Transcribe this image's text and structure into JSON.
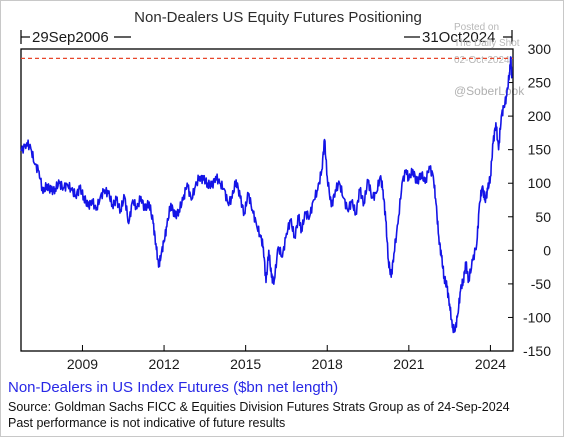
{
  "chart_data": {
    "type": "line",
    "title": "Non-Dealers US Equity Futures Positioning",
    "range_start_label": "29Sep2006",
    "range_end_label": "31Oct2024",
    "xlim": [
      2006.74,
      2024.83
    ],
    "ylim": [
      -150,
      300
    ],
    "x_ticks": [
      2009,
      2012,
      2015,
      2018,
      2021,
      2024
    ],
    "x_tick_labels": [
      "2009",
      "2012",
      "2015",
      "2018",
      "2021",
      "2024"
    ],
    "y_ticks": [
      300,
      250,
      200,
      150,
      100,
      50,
      0,
      -50,
      -100,
      -150
    ],
    "y_tick_labels": [
      "300",
      "250",
      "200",
      "150",
      "100",
      "50",
      "0",
      "-50",
      "-100",
      "-150"
    ],
    "reference_line": {
      "y": 286,
      "style": "dashed",
      "color": "#e8462a"
    },
    "series": [
      {
        "name": "Non-Dealers in US Index Futures ($bn net length)",
        "color": "#1414e6",
        "points": [
          [
            2006.75,
            148
          ],
          [
            2006.95,
            160
          ],
          [
            2007.1,
            152
          ],
          [
            2007.25,
            128
          ],
          [
            2007.4,
            118
          ],
          [
            2007.55,
            85
          ],
          [
            2007.7,
            98
          ],
          [
            2007.85,
            88
          ],
          [
            2008.0,
            92
          ],
          [
            2008.15,
            100
          ],
          [
            2008.3,
            93
          ],
          [
            2008.45,
            98
          ],
          [
            2008.6,
            90
          ],
          [
            2008.75,
            82
          ],
          [
            2008.9,
            92
          ],
          [
            2009.05,
            80
          ],
          [
            2009.2,
            65
          ],
          [
            2009.35,
            75
          ],
          [
            2009.5,
            60
          ],
          [
            2009.65,
            78
          ],
          [
            2009.8,
            90
          ],
          [
            2009.95,
            85
          ],
          [
            2010.1,
            68
          ],
          [
            2010.25,
            75
          ],
          [
            2010.4,
            60
          ],
          [
            2010.55,
            80
          ],
          [
            2010.7,
            40
          ],
          [
            2010.85,
            75
          ],
          [
            2011.0,
            62
          ],
          [
            2011.15,
            80
          ],
          [
            2011.3,
            60
          ],
          [
            2011.45,
            72
          ],
          [
            2011.6,
            40
          ],
          [
            2011.7,
            10
          ],
          [
            2011.8,
            -25
          ],
          [
            2011.9,
            -5
          ],
          [
            2012.0,
            15
          ],
          [
            2012.1,
            35
          ],
          [
            2012.25,
            70
          ],
          [
            2012.4,
            50
          ],
          [
            2012.55,
            60
          ],
          [
            2012.7,
            75
          ],
          [
            2012.85,
            100
          ],
          [
            2013.0,
            75
          ],
          [
            2013.15,
            95
          ],
          [
            2013.3,
            110
          ],
          [
            2013.45,
            105
          ],
          [
            2013.6,
            100
          ],
          [
            2013.75,
            95
          ],
          [
            2013.9,
            110
          ],
          [
            2014.05,
            100
          ],
          [
            2014.2,
            92
          ],
          [
            2014.35,
            70
          ],
          [
            2014.5,
            78
          ],
          [
            2014.65,
            105
          ],
          [
            2014.8,
            78
          ],
          [
            2014.95,
            55
          ],
          [
            2015.1,
            85
          ],
          [
            2015.25,
            60
          ],
          [
            2015.4,
            38
          ],
          [
            2015.55,
            20
          ],
          [
            2015.65,
            5
          ],
          [
            2015.75,
            -48
          ],
          [
            2015.85,
            0
          ],
          [
            2015.95,
            -40
          ],
          [
            2016.05,
            -45
          ],
          [
            2016.2,
            5
          ],
          [
            2016.35,
            -10
          ],
          [
            2016.5,
            25
          ],
          [
            2016.65,
            45
          ],
          [
            2016.8,
            20
          ],
          [
            2016.95,
            50
          ],
          [
            2017.05,
            30
          ],
          [
            2017.2,
            55
          ],
          [
            2017.35,
            50
          ],
          [
            2017.5,
            75
          ],
          [
            2017.65,
            90
          ],
          [
            2017.8,
            120
          ],
          [
            2017.9,
            165
          ],
          [
            2018.0,
            110
          ],
          [
            2018.15,
            65
          ],
          [
            2018.3,
            90
          ],
          [
            2018.45,
            100
          ],
          [
            2018.6,
            78
          ],
          [
            2018.75,
            60
          ],
          [
            2018.9,
            72
          ],
          [
            2019.05,
            55
          ],
          [
            2019.2,
            90
          ],
          [
            2019.35,
            70
          ],
          [
            2019.5,
            105
          ],
          [
            2019.65,
            78
          ],
          [
            2019.8,
            85
          ],
          [
            2019.95,
            110
          ],
          [
            2020.05,
            90
          ],
          [
            2020.15,
            45
          ],
          [
            2020.25,
            -15
          ],
          [
            2020.35,
            -40
          ],
          [
            2020.45,
            -5
          ],
          [
            2020.6,
            40
          ],
          [
            2020.75,
            100
          ],
          [
            2020.9,
            120
          ],
          [
            2021.0,
            105
          ],
          [
            2021.15,
            120
          ],
          [
            2021.3,
            100
          ],
          [
            2021.45,
            115
          ],
          [
            2021.6,
            100
          ],
          [
            2021.75,
            125
          ],
          [
            2021.9,
            110
          ],
          [
            2022.0,
            70
          ],
          [
            2022.1,
            20
          ],
          [
            2022.2,
            -10
          ],
          [
            2022.3,
            -40
          ],
          [
            2022.4,
            -55
          ],
          [
            2022.5,
            -80
          ],
          [
            2022.6,
            -115
          ],
          [
            2022.7,
            -120
          ],
          [
            2022.8,
            -95
          ],
          [
            2022.9,
            -60
          ],
          [
            2023.0,
            -45
          ],
          [
            2023.1,
            -20
          ],
          [
            2023.2,
            -45
          ],
          [
            2023.35,
            -15
          ],
          [
            2023.5,
            10
          ],
          [
            2023.6,
            70
          ],
          [
            2023.7,
            95
          ],
          [
            2023.8,
            75
          ],
          [
            2023.9,
            90
          ],
          [
            2024.0,
            110
          ],
          [
            2024.1,
            160
          ],
          [
            2024.2,
            190
          ],
          [
            2024.3,
            150
          ],
          [
            2024.4,
            200
          ],
          [
            2024.5,
            215
          ],
          [
            2024.6,
            230
          ],
          [
            2024.7,
            265
          ],
          [
            2024.75,
            285
          ],
          [
            2024.79,
            260
          ]
        ]
      }
    ]
  },
  "caption": "Non-Dealers in US Index Futures ($bn net length)",
  "source": "Source: Goldman Sachs FICC & Equities Division Futures Strats Group as of 24-Sep-2024",
  "note": "Past performance is not indicative of future results",
  "watermark": {
    "line1": "Posted on",
    "line2": "The Daily Shot",
    "line3": "02-Oct-2024",
    "handle": "@SoberLook"
  },
  "colors": {
    "series": "#1414e6",
    "reference": "#e8462a",
    "caption": "#2828e6"
  }
}
